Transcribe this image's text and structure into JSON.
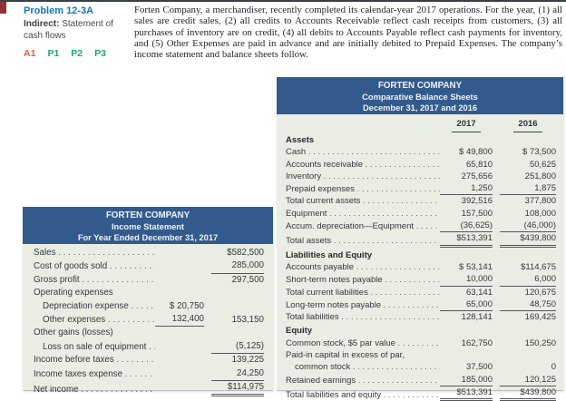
{
  "page": {
    "problem_id": "Problem 12-3A",
    "problem_type_label": "Indirect:",
    "problem_type_rest": " Statement of cash flows",
    "tags": [
      "A1",
      "P1",
      "P2",
      "P3"
    ],
    "intro_text": "Forten Company, a merchandiser, recently completed its calendar-year 2017 operations. For the year, (1) all sales are credit sales, (2) all credits to Accounts Receivable reflect cash receipts from customers, (3) all purchases of inventory are on credit, (4) all debits to Accounts Payable reflect cash payments for inventory, and (5) Other Expenses are paid in advance and are initially debited to Prepaid Expenses. The company’s income statement and balance sheets follow."
  },
  "colors": {
    "table_header_blue": "#335a8c",
    "table_body_green": "#eaede4",
    "problem_title_blue": "#1276bd",
    "tag_orange": "#e2593c",
    "tag_green": "#21a179",
    "corner_mark_red": "#8e3335"
  },
  "income_statement": {
    "title": "FORTEN COMPANY",
    "subtitle": "Income Statement",
    "period": "For Year Ended December 31, 2017",
    "rows": [
      {
        "label": "Sales",
        "col1": "",
        "col2": "$582,500"
      },
      {
        "label": "Cost of goods sold",
        "col1": "",
        "col2": "285,000"
      },
      {
        "label": "Gross profit",
        "col1": "",
        "col2": "297,500"
      },
      {
        "label": "Operating expenses",
        "col1": "",
        "col2": ""
      },
      {
        "label": "Depreciation expense",
        "col1": "$ 20,750",
        "col2": ""
      },
      {
        "label": "Other expenses",
        "col1": "132,400",
        "col2": "153,150"
      },
      {
        "label": "Other gains (losses)",
        "col1": "",
        "col2": ""
      },
      {
        "label": "Loss on sale of equipment",
        "col1": "",
        "col2": "(5,125)"
      },
      {
        "label": "Income before taxes",
        "col1": "",
        "col2": "139,225"
      },
      {
        "label": "Income taxes expense",
        "col1": "",
        "col2": "24,250"
      },
      {
        "label": "Net income",
        "col1": "",
        "col2": "$114,975"
      }
    ]
  },
  "balance_sheet": {
    "title": "FORTEN COMPANY",
    "subtitle": "Comparative Balance Sheets",
    "period": "December 31, 2017 and 2016",
    "col_headers": [
      "2017",
      "2016"
    ],
    "rows": [
      {
        "label": "Assets",
        "v1": "",
        "v2": ""
      },
      {
        "label": "Cash",
        "v1": "$ 49,800",
        "v2": "$ 73,500"
      },
      {
        "label": "Accounts receivable",
        "v1": "65,810",
        "v2": "50,625"
      },
      {
        "label": "Inventory",
        "v1": "275,656",
        "v2": "251,800"
      },
      {
        "label": "Prepaid expenses",
        "v1": "1,250",
        "v2": "1,875"
      },
      {
        "label": "Total current assets",
        "v1": "392,516",
        "v2": "377,800"
      },
      {
        "label": "Equipment",
        "v1": "157,500",
        "v2": "108,000"
      },
      {
        "label": "Accum. depreciation—Equipment",
        "v1": "(36,625)",
        "v2": "(46,000)"
      },
      {
        "label": "Total assets",
        "v1": "$513,391",
        "v2": "$439,800"
      },
      {
        "label": "Liabilities and Equity",
        "v1": "",
        "v2": ""
      },
      {
        "label": "Accounts payable",
        "v1": "$ 53,141",
        "v2": "$114,675"
      },
      {
        "label": "Short-term notes payable",
        "v1": "10,000",
        "v2": "6,000"
      },
      {
        "label": "Total current liabilities",
        "v1": "63,141",
        "v2": "120,675"
      },
      {
        "label": "Long-term notes payable",
        "v1": "65,000",
        "v2": "48,750"
      },
      {
        "label": "Total liabilities",
        "v1": "128,141",
        "v2": "169,425"
      },
      {
        "label": "Equity",
        "v1": "",
        "v2": ""
      },
      {
        "label": "Common stock, $5 par value",
        "v1": "162,750",
        "v2": "150,250"
      },
      {
        "label": "Paid-in capital in excess of par,",
        "v1": "",
        "v2": ""
      },
      {
        "label": "common stock",
        "v1": "37,500",
        "v2": "0"
      },
      {
        "label": "Retained earnings",
        "v1": "185,000",
        "v2": "120,125"
      },
      {
        "label": "Total liabilities and equity",
        "v1": "$513,391",
        "v2": "$439,800"
      }
    ]
  }
}
